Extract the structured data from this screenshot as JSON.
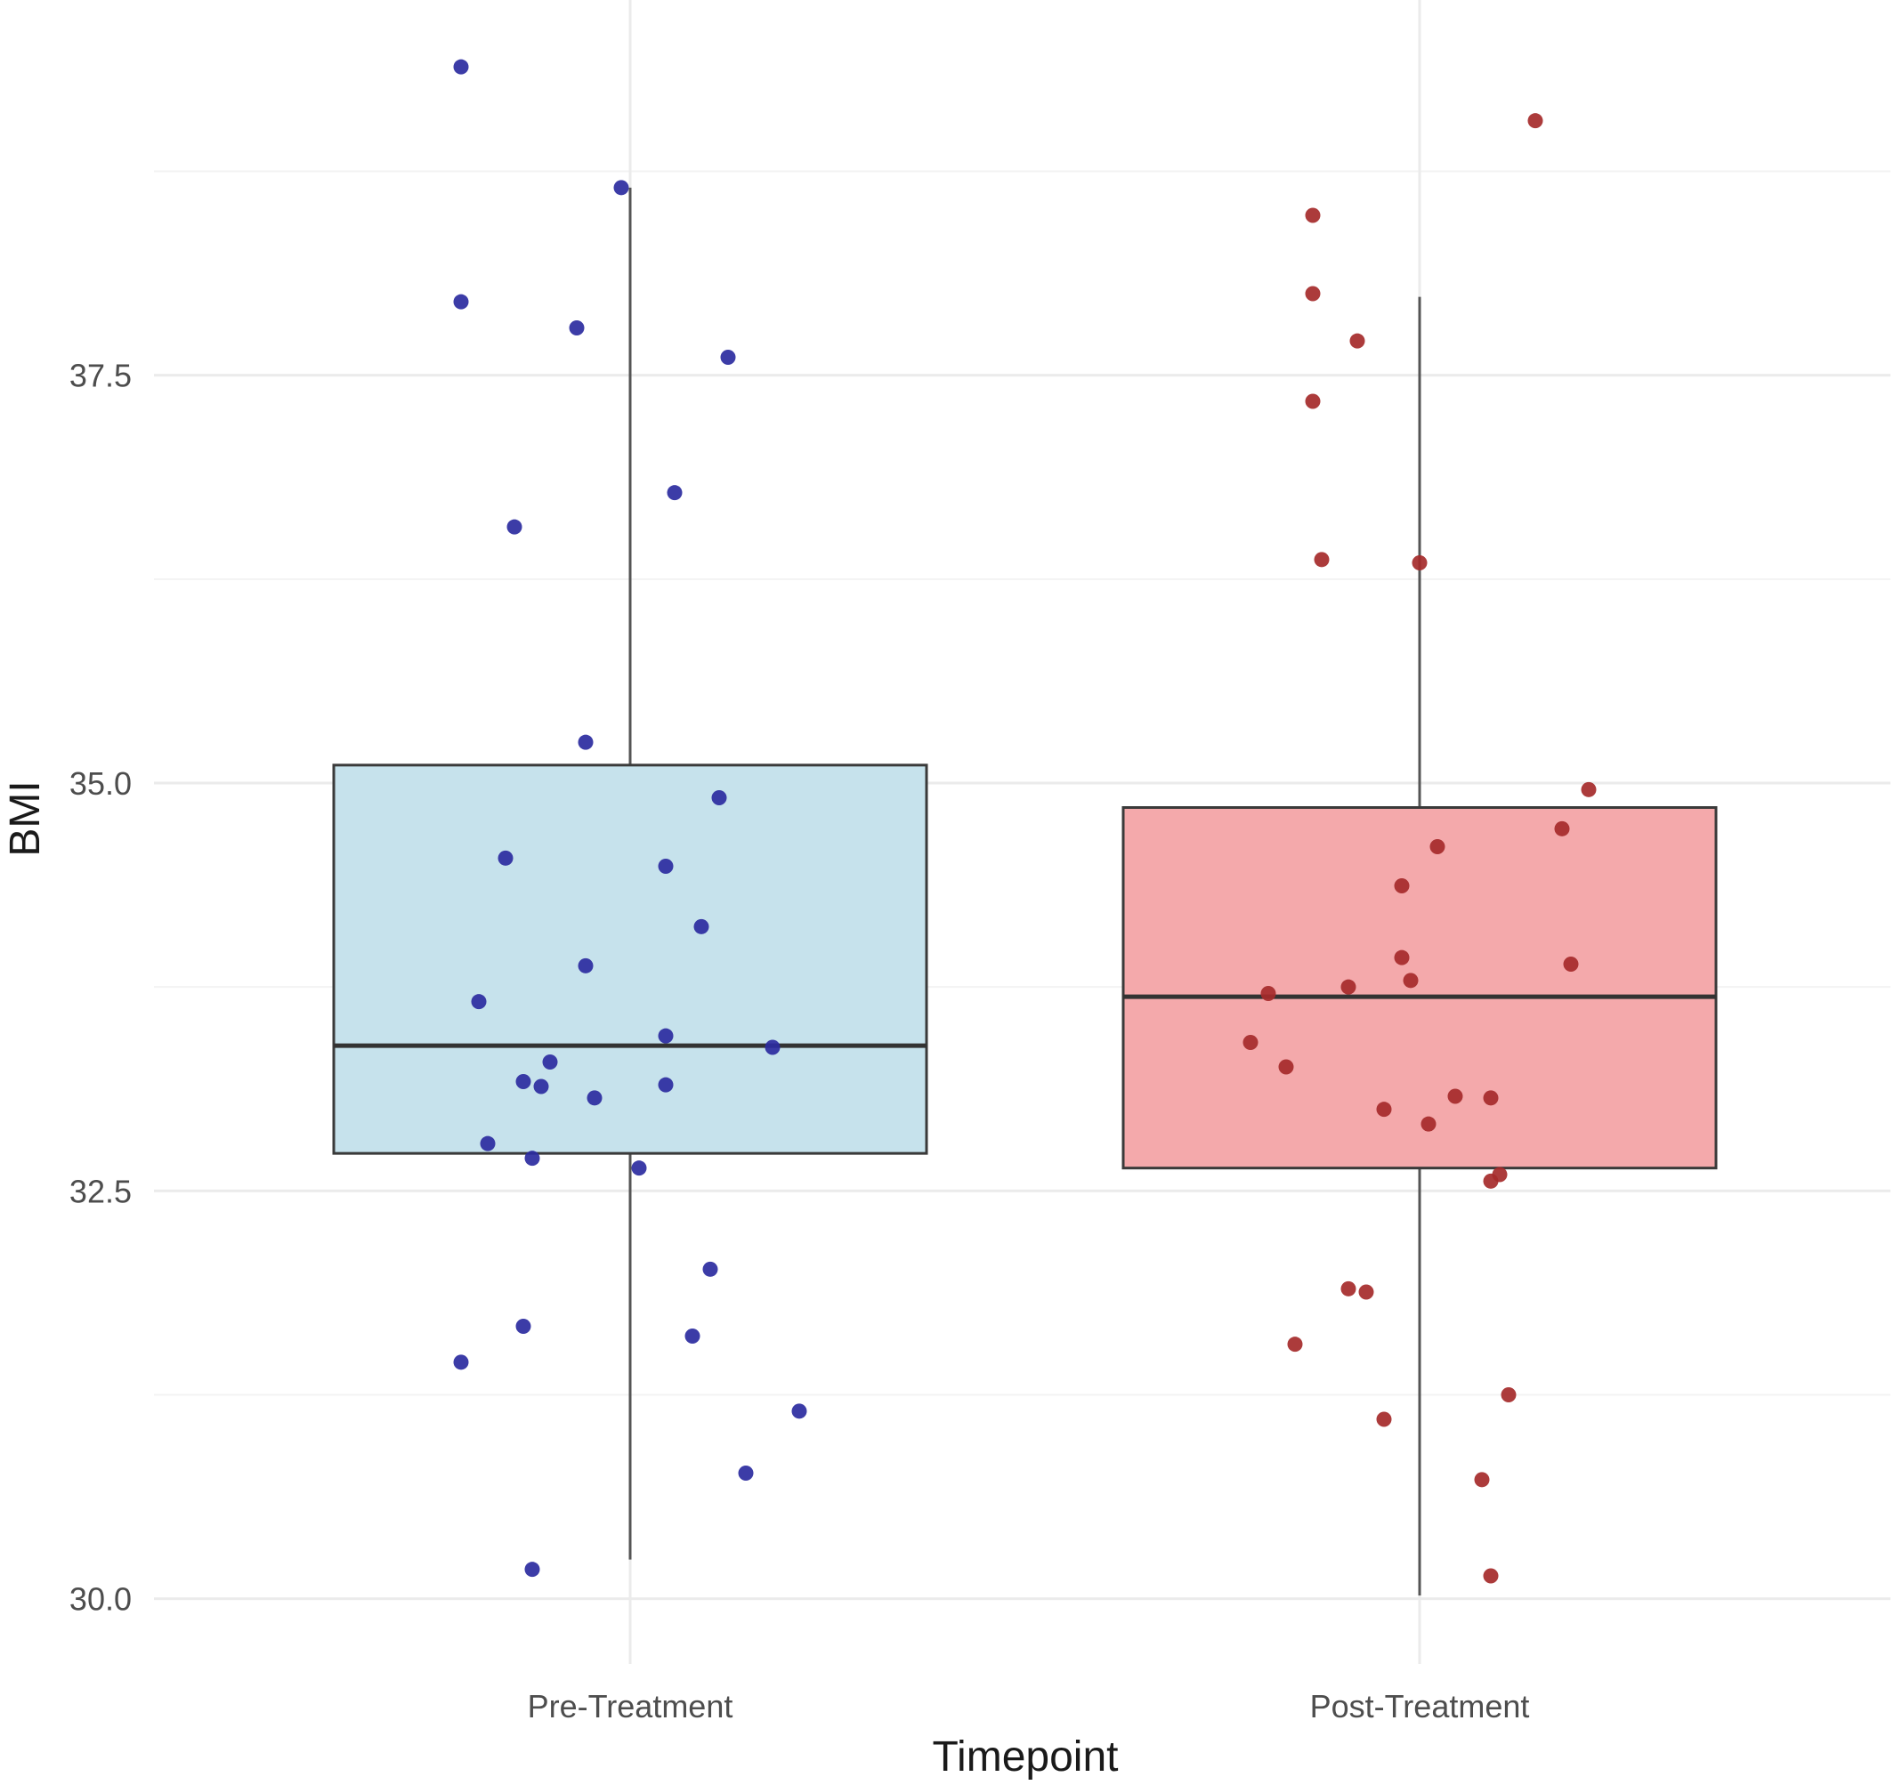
{
  "chart_data": {
    "type": "box",
    "title": "",
    "xlabel": "Timepoint",
    "ylabel": "BMI",
    "ylim": [
      29.6,
      39.8
    ],
    "yticks": [
      "30.0",
      "32.5",
      "35.0",
      "37.5"
    ],
    "grid": true,
    "legend": "none",
    "categories": [
      "Pre-Treatment",
      "Post-Treatment"
    ],
    "boxes": [
      {
        "category": "Pre-Treatment",
        "whisker_low": 30.24,
        "q1": 32.73,
        "median": 33.39,
        "q3": 35.11,
        "whisker_high": 38.65,
        "fill": "#c6e2ec",
        "point_color": "#2b2ba0",
        "points": [
          {
            "x": -0.19,
            "y": 39.39
          },
          {
            "x": -0.01,
            "y": 38.65
          },
          {
            "x": -0.19,
            "y": 37.95
          },
          {
            "x": -0.06,
            "y": 37.79
          },
          {
            "x": 0.11,
            "y": 37.61
          },
          {
            "x": 0.05,
            "y": 36.78
          },
          {
            "x": -0.13,
            "y": 36.57
          },
          {
            "x": -0.05,
            "y": 35.25
          },
          {
            "x": 0.1,
            "y": 34.91
          },
          {
            "x": -0.14,
            "y": 34.54
          },
          {
            "x": 0.04,
            "y": 34.49
          },
          {
            "x": 0.08,
            "y": 34.12
          },
          {
            "x": -0.05,
            "y": 33.88
          },
          {
            "x": -0.17,
            "y": 33.66
          },
          {
            "x": 0.04,
            "y": 33.45
          },
          {
            "x": 0.16,
            "y": 33.38
          },
          {
            "x": -0.09,
            "y": 33.29
          },
          {
            "x": -0.12,
            "y": 33.17
          },
          {
            "x": -0.1,
            "y": 33.14
          },
          {
            "x": 0.04,
            "y": 33.15
          },
          {
            "x": -0.04,
            "y": 33.07
          },
          {
            "x": -0.16,
            "y": 32.79
          },
          {
            "x": -0.11,
            "y": 32.7
          },
          {
            "x": 0.01,
            "y": 32.64
          },
          {
            "x": 0.09,
            "y": 32.02
          },
          {
            "x": -0.12,
            "y": 31.67
          },
          {
            "x": 0.07,
            "y": 31.61
          },
          {
            "x": -0.19,
            "y": 31.45
          },
          {
            "x": 0.19,
            "y": 31.15
          },
          {
            "x": 0.13,
            "y": 30.77
          },
          {
            "x": -0.11,
            "y": 30.18
          }
        ]
      },
      {
        "category": "Post-Treatment",
        "whisker_low": 30.02,
        "q1": 32.64,
        "median": 33.69,
        "q3": 34.85,
        "whisker_high": 37.98,
        "fill": "#f4a9ab",
        "point_color": "#a52a2a",
        "points": [
          {
            "x": 0.13,
            "y": 39.06
          },
          {
            "x": -0.12,
            "y": 38.48
          },
          {
            "x": -0.12,
            "y": 38.0
          },
          {
            "x": -0.07,
            "y": 37.71
          },
          {
            "x": -0.12,
            "y": 37.34
          },
          {
            "x": -0.11,
            "y": 36.37
          },
          {
            "x": 0.0,
            "y": 36.35
          },
          {
            "x": 0.19,
            "y": 34.96
          },
          {
            "x": 0.16,
            "y": 34.72
          },
          {
            "x": 0.02,
            "y": 34.61
          },
          {
            "x": -0.02,
            "y": 34.37
          },
          {
            "x": -0.02,
            "y": 33.93
          },
          {
            "x": 0.17,
            "y": 33.89
          },
          {
            "x": -0.01,
            "y": 33.79
          },
          {
            "x": -0.08,
            "y": 33.75
          },
          {
            "x": -0.17,
            "y": 33.71
          },
          {
            "x": -0.19,
            "y": 33.41
          },
          {
            "x": -0.15,
            "y": 33.26
          },
          {
            "x": 0.04,
            "y": 33.08
          },
          {
            "x": 0.08,
            "y": 33.07
          },
          {
            "x": -0.04,
            "y": 33.0
          },
          {
            "x": 0.01,
            "y": 32.91
          },
          {
            "x": 0.08,
            "y": 32.56
          },
          {
            "x": 0.09,
            "y": 32.6
          },
          {
            "x": -0.08,
            "y": 31.9
          },
          {
            "x": -0.06,
            "y": 31.88
          },
          {
            "x": -0.14,
            "y": 31.56
          },
          {
            "x": 0.1,
            "y": 31.25
          },
          {
            "x": -0.04,
            "y": 31.1
          },
          {
            "x": 0.07,
            "y": 30.73
          },
          {
            "x": 0.08,
            "y": 30.14
          }
        ]
      }
    ]
  }
}
